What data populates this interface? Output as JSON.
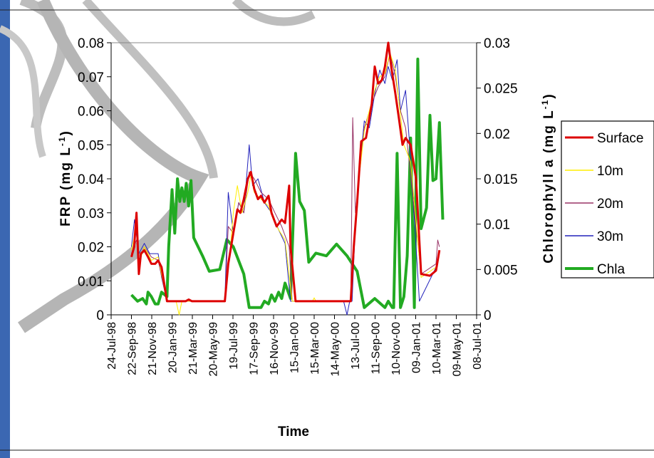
{
  "chart_data": {
    "type": "line",
    "title": "",
    "xlabel": "Time",
    "ylabel_left": "FRP (mg L-1)",
    "ylabel_right": "Chlorophyll a (mg L-1)",
    "x_tick_labels": [
      "24-Jul-98",
      "22-Sep-98",
      "21-Nov-98",
      "20-Jan-99",
      "21-Mar-99",
      "20-May-99",
      "19-Jul-99",
      "17-Sep-99",
      "16-Nov-99",
      "15-Jan-00",
      "15-Mar-00",
      "14-May-00",
      "13-Jul-00",
      "11-Sep-00",
      "10-Nov-00",
      "09-Jan-01",
      "10-Mar-01",
      "09-May-01",
      "08-Jul-01"
    ],
    "xlim": [
      "1998-07-24",
      "2001-07-08"
    ],
    "ylim_left": [
      0,
      0.08
    ],
    "ylim_right": [
      0,
      0.03
    ],
    "left_ticks": [
      "0",
      "0.01",
      "0.02",
      "0.03",
      "0.04",
      "0.05",
      "0.06",
      "0.07",
      "0.08"
    ],
    "right_ticks": [
      "0",
      "0.005",
      "0.01",
      "0.015",
      "0.02",
      "0.025",
      "0.03"
    ],
    "grid": false,
    "legend_position": "right",
    "series": [
      {
        "name": "Surface",
        "axis": "left",
        "color": "#dd0000",
        "width": 3,
        "points": [
          [
            "1998-09-22",
            0.017
          ],
          [
            "1998-09-30",
            0.02
          ],
          [
            "1998-10-07",
            0.03
          ],
          [
            "1998-10-14",
            0.012
          ],
          [
            "1998-10-20",
            0.018
          ],
          [
            "1998-10-30",
            0.019
          ],
          [
            "1998-11-10",
            0.017
          ],
          [
            "1998-11-20",
            0.015
          ],
          [
            "1998-12-01",
            0.015
          ],
          [
            "1998-12-10",
            0.016
          ],
          [
            "1998-12-20",
            0.014
          ],
          [
            "1999-01-05",
            0.004
          ],
          [
            "1999-03-01",
            0.004
          ],
          [
            "1999-03-10",
            0.0045
          ],
          [
            "1999-03-20",
            0.004
          ],
          [
            "1999-06-25",
            0.004
          ],
          [
            "1999-07-05",
            0.015
          ],
          [
            "1999-07-20",
            0.024
          ],
          [
            "1999-08-01",
            0.031
          ],
          [
            "1999-08-10",
            0.03
          ],
          [
            "1999-08-20",
            0.034
          ],
          [
            "1999-09-01",
            0.04
          ],
          [
            "1999-09-10",
            0.042
          ],
          [
            "1999-09-20",
            0.037
          ],
          [
            "1999-10-01",
            0.034
          ],
          [
            "1999-10-10",
            0.035
          ],
          [
            "1999-10-20",
            0.033
          ],
          [
            "1999-11-01",
            0.035
          ],
          [
            "1999-11-10",
            0.03
          ],
          [
            "1999-11-25",
            0.026
          ],
          [
            "1999-12-10",
            0.028
          ],
          [
            "1999-12-20",
            0.027
          ],
          [
            "2000-01-01",
            0.038
          ],
          [
            "2000-01-05",
            0.02
          ],
          [
            "2000-01-20",
            0.004
          ],
          [
            "2000-07-01",
            0.004
          ],
          [
            "2000-07-10",
            0.02
          ],
          [
            "2000-07-20",
            0.033
          ],
          [
            "2000-08-01",
            0.051
          ],
          [
            "2000-08-15",
            0.052
          ],
          [
            "2000-09-01",
            0.062
          ],
          [
            "2000-09-10",
            0.073
          ],
          [
            "2000-09-20",
            0.068
          ],
          [
            "2000-10-01",
            0.069
          ],
          [
            "2000-10-10",
            0.073
          ],
          [
            "2000-10-20",
            0.08
          ],
          [
            "2000-10-30",
            0.072
          ],
          [
            "2000-11-10",
            0.065
          ],
          [
            "2000-11-20",
            0.058
          ],
          [
            "2000-12-01",
            0.05
          ],
          [
            "2000-12-10",
            0.052
          ],
          [
            "2000-12-25",
            0.05
          ],
          [
            "2001-01-10",
            0.04
          ],
          [
            "2001-01-25",
            0.012
          ],
          [
            "2001-02-20",
            0.0115
          ],
          [
            "2001-03-10",
            0.013
          ],
          [
            "2001-03-20",
            0.019
          ]
        ]
      },
      {
        "name": "10m",
        "axis": "left",
        "color": "#ffee00",
        "width": 1,
        "points": [
          [
            "1998-09-22",
            0.019
          ],
          [
            "1998-10-07",
            0.026
          ],
          [
            "1998-10-14",
            0.015
          ],
          [
            "1998-10-30",
            0.02
          ],
          [
            "1998-11-20",
            0.016
          ],
          [
            "1998-12-10",
            0.017
          ],
          [
            "1999-01-05",
            0.004
          ],
          [
            "1999-02-01",
            0.004
          ],
          [
            "1999-02-10",
            0.0
          ],
          [
            "1999-02-18",
            0.004
          ],
          [
            "1999-06-25",
            0.004
          ],
          [
            "1999-07-10",
            0.018
          ],
          [
            "1999-07-20",
            0.03
          ],
          [
            "1999-08-01",
            0.038
          ],
          [
            "1999-08-15",
            0.03
          ],
          [
            "1999-09-01",
            0.036
          ],
          [
            "1999-09-10",
            0.041
          ],
          [
            "1999-09-20",
            0.036
          ],
          [
            "1999-10-10",
            0.034
          ],
          [
            "1999-11-01",
            0.032
          ],
          [
            "1999-11-15",
            0.028
          ],
          [
            "1999-12-01",
            0.025
          ],
          [
            "1999-12-20",
            0.022
          ],
          [
            "2000-01-10",
            0.004
          ],
          [
            "2000-03-10",
            0.004
          ],
          [
            "2000-03-15",
            0.005
          ],
          [
            "2000-03-20",
            0.004
          ],
          [
            "2000-07-01",
            0.004
          ],
          [
            "2000-07-20",
            0.035
          ],
          [
            "2000-08-10",
            0.054
          ],
          [
            "2000-08-25",
            0.06
          ],
          [
            "2000-09-10",
            0.066
          ],
          [
            "2000-09-25",
            0.07
          ],
          [
            "2000-10-10",
            0.071
          ],
          [
            "2000-10-25",
            0.077
          ],
          [
            "2000-11-10",
            0.072
          ],
          [
            "2000-11-20",
            0.063
          ],
          [
            "2000-12-05",
            0.05
          ],
          [
            "2000-12-25",
            0.045
          ],
          [
            "2001-01-25",
            0.011
          ],
          [
            "2001-03-10",
            0.014
          ],
          [
            "2001-03-20",
            0.018
          ]
        ]
      },
      {
        "name": "20m",
        "axis": "left",
        "color": "#993366",
        "width": 1,
        "points": [
          [
            "1998-09-22",
            0.018
          ],
          [
            "1998-10-07",
            0.022
          ],
          [
            "1998-10-14",
            0.016
          ],
          [
            "1998-10-30",
            0.02
          ],
          [
            "1998-11-20",
            0.017
          ],
          [
            "1998-12-10",
            0.016
          ],
          [
            "1999-01-05",
            0.004
          ],
          [
            "1999-06-25",
            0.004
          ],
          [
            "1999-07-05",
            0.026
          ],
          [
            "1999-07-20",
            0.024
          ],
          [
            "1999-08-05",
            0.033
          ],
          [
            "1999-08-20",
            0.03
          ],
          [
            "1999-09-05",
            0.042
          ],
          [
            "1999-09-20",
            0.04
          ],
          [
            "1999-10-10",
            0.036
          ],
          [
            "1999-11-01",
            0.034
          ],
          [
            "1999-11-20",
            0.03
          ],
          [
            "1999-12-10",
            0.026
          ],
          [
            "2000-01-01",
            0.02
          ],
          [
            "2000-01-10",
            0.004
          ],
          [
            "2000-07-01",
            0.004
          ],
          [
            "2000-07-07",
            0.058
          ],
          [
            "2000-07-15",
            0.03
          ],
          [
            "2000-08-10",
            0.055
          ],
          [
            "2000-09-01",
            0.062
          ],
          [
            "2000-09-20",
            0.067
          ],
          [
            "2000-10-10",
            0.07
          ],
          [
            "2000-10-25",
            0.077
          ],
          [
            "2000-11-10",
            0.07
          ],
          [
            "2000-11-25",
            0.06
          ],
          [
            "2000-12-10",
            0.055
          ],
          [
            "2001-01-25",
            0.012
          ],
          [
            "2001-03-10",
            0.015
          ],
          [
            "2001-03-15",
            0.022
          ],
          [
            "2001-03-20",
            0.02
          ]
        ]
      },
      {
        "name": "30m",
        "axis": "left",
        "color": "#2222bb",
        "width": 1,
        "points": [
          [
            "1998-09-22",
            0.02
          ],
          [
            "1998-10-01",
            0.028
          ],
          [
            "1998-10-14",
            0.018
          ],
          [
            "1998-10-30",
            0.021
          ],
          [
            "1998-11-15",
            0.018
          ],
          [
            "1998-12-10",
            0.018
          ],
          [
            "1998-12-20",
            0.011
          ],
          [
            "1999-01-05",
            0.004
          ],
          [
            "1999-06-25",
            0.004
          ],
          [
            "1999-07-05",
            0.036
          ],
          [
            "1999-07-20",
            0.024
          ],
          [
            "1999-08-05",
            0.033
          ],
          [
            "1999-08-20",
            0.03
          ],
          [
            "1999-09-05",
            0.05
          ],
          [
            "1999-09-15",
            0.038
          ],
          [
            "1999-10-01",
            0.04
          ],
          [
            "1999-10-20",
            0.033
          ],
          [
            "1999-11-10",
            0.03
          ],
          [
            "1999-12-01",
            0.025
          ],
          [
            "1999-12-20",
            0.021
          ],
          [
            "2000-01-05",
            0.004
          ],
          [
            "2000-06-10",
            0.004
          ],
          [
            "2000-06-20",
            0.0
          ],
          [
            "2000-06-28",
            0.004
          ],
          [
            "2000-07-05",
            0.004
          ],
          [
            "2000-07-15",
            0.027
          ],
          [
            "2000-07-25",
            0.04
          ],
          [
            "2000-08-10",
            0.057
          ],
          [
            "2000-08-25",
            0.055
          ],
          [
            "2000-09-10",
            0.065
          ],
          [
            "2000-09-25",
            0.072
          ],
          [
            "2000-10-10",
            0.068
          ],
          [
            "2000-10-20",
            0.073
          ],
          [
            "2000-11-01",
            0.069
          ],
          [
            "2000-11-15",
            0.075
          ],
          [
            "2000-11-25",
            0.06
          ],
          [
            "2000-12-10",
            0.066
          ],
          [
            "2000-12-25",
            0.046
          ],
          [
            "2001-01-20",
            0.004
          ],
          [
            "2001-03-15",
            0.015
          ],
          [
            "2001-03-20",
            0.019
          ]
        ]
      },
      {
        "name": "Chla",
        "axis": "right",
        "color": "#22aa22",
        "width": 4,
        "points": [
          [
            "1998-09-22",
            0.0022
          ],
          [
            "1998-10-10",
            0.0015
          ],
          [
            "1998-10-25",
            0.0018
          ],
          [
            "1998-11-05",
            0.0012
          ],
          [
            "1998-11-10",
            0.0025
          ],
          [
            "1998-11-20",
            0.002
          ],
          [
            "1998-12-01",
            0.0012
          ],
          [
            "1998-12-10",
            0.0012
          ],
          [
            "1998-12-20",
            0.0025
          ],
          [
            "1999-01-05",
            0.002
          ],
          [
            "1999-01-10",
            0.0075
          ],
          [
            "1999-01-20",
            0.0138
          ],
          [
            "1999-01-28",
            0.009
          ],
          [
            "1999-02-05",
            0.015
          ],
          [
            "1999-02-12",
            0.0125
          ],
          [
            "1999-02-18",
            0.014
          ],
          [
            "1999-02-25",
            0.0125
          ],
          [
            "1999-03-03",
            0.0145
          ],
          [
            "1999-03-10",
            0.012
          ],
          [
            "1999-03-17",
            0.0148
          ],
          [
            "1999-03-25",
            0.0085
          ],
          [
            "1999-04-20",
            0.0065
          ],
          [
            "1999-05-10",
            0.0048
          ],
          [
            "1999-06-10",
            0.005
          ],
          [
            "1999-07-01",
            0.0083
          ],
          [
            "1999-07-20",
            0.0075
          ],
          [
            "1999-08-20",
            0.0045
          ],
          [
            "1999-09-05",
            0.0008
          ],
          [
            "1999-09-25",
            0.0008
          ],
          [
            "1999-10-10",
            0.0008
          ],
          [
            "1999-10-20",
            0.0015
          ],
          [
            "1999-11-01",
            0.0012
          ],
          [
            "1999-11-10",
            0.0022
          ],
          [
            "1999-11-20",
            0.0015
          ],
          [
            "1999-12-01",
            0.0025
          ],
          [
            "1999-12-10",
            0.0018
          ],
          [
            "1999-12-20",
            0.0035
          ],
          [
            "2000-01-05",
            0.0018
          ],
          [
            "2000-01-20",
            0.0178
          ],
          [
            "2000-02-01",
            0.0125
          ],
          [
            "2000-02-15",
            0.0115
          ],
          [
            "2000-02-28",
            0.0058
          ],
          [
            "2000-03-20",
            0.0068
          ],
          [
            "2000-04-20",
            0.0065
          ],
          [
            "2000-05-20",
            0.0078
          ],
          [
            "2000-06-20",
            0.0065
          ],
          [
            "2000-07-20",
            0.0048
          ],
          [
            "2000-08-10",
            0.0008
          ],
          [
            "2000-09-10",
            0.0018
          ],
          [
            "2000-10-10",
            0.0008
          ],
          [
            "2000-10-20",
            0.0015
          ],
          [
            "2000-11-01",
            0.0008
          ],
          [
            "2000-11-05",
            0.0008
          ],
          [
            "2000-11-15",
            0.0178
          ],
          [
            "2000-11-25",
            0.0008
          ],
          [
            "2000-12-05",
            0.002
          ],
          [
            "2000-12-15",
            0.0065
          ],
          [
            "2000-12-25",
            0.0195
          ],
          [
            "2001-01-05",
            0.0008
          ],
          [
            "2001-01-15",
            0.0282
          ],
          [
            "2001-01-25",
            0.0095
          ],
          [
            "2001-02-10",
            0.0118
          ],
          [
            "2001-02-20",
            0.022
          ],
          [
            "2001-03-01",
            0.0148
          ],
          [
            "2001-03-10",
            0.015
          ],
          [
            "2001-03-20",
            0.0212
          ],
          [
            "2001-03-30",
            0.0105
          ]
        ]
      }
    ]
  }
}
